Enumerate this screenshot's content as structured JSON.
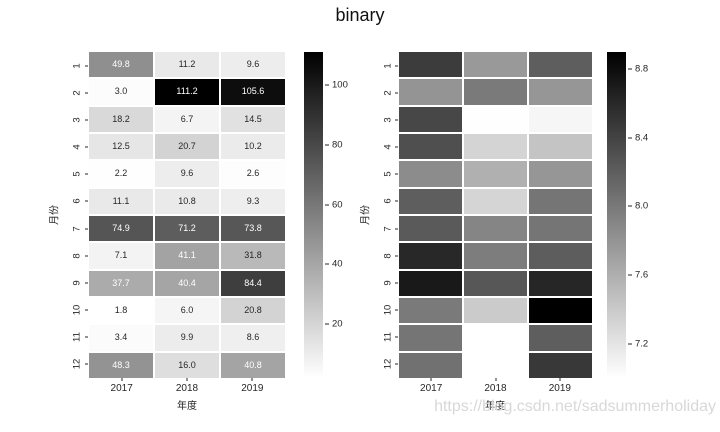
{
  "title": "binary",
  "watermark": "https://blog.csdn.net/sadsummerholiday",
  "colors": {
    "annotation_light": "#ffffff",
    "annotation_dark": "#262626",
    "tick_text": "#262626",
    "watermark": "#d8d8d8"
  },
  "chart_data": [
    {
      "type": "heatmap",
      "name": "annotated-heatmap",
      "colormap": "binary",
      "annotated": true,
      "xlabel": "年度",
      "ylabel": "月份",
      "columns": [
        "2017",
        "2018",
        "2019"
      ],
      "rows": [
        "1",
        "2",
        "3",
        "4",
        "5",
        "6",
        "7",
        "8",
        "9",
        "10",
        "11",
        "12"
      ],
      "values": [
        [
          49.8,
          11.2,
          9.6
        ],
        [
          3.0,
          111.2,
          105.6
        ],
        [
          18.2,
          6.7,
          14.5
        ],
        [
          12.5,
          20.7,
          10.2
        ],
        [
          2.2,
          9.6,
          2.6
        ],
        [
          11.1,
          10.8,
          9.3
        ],
        [
          74.9,
          71.2,
          73.8
        ],
        [
          7.1,
          41.1,
          31.8
        ],
        [
          37.7,
          40.4,
          84.4
        ],
        [
          1.8,
          6.0,
          20.8
        ],
        [
          3.4,
          9.9,
          8.6
        ],
        [
          48.3,
          16.0,
          40.8
        ]
      ],
      "vmin": 1.8,
      "vmax": 111.2,
      "colorbar_ticks": [
        "20",
        "40",
        "60",
        "80",
        "100"
      ]
    },
    {
      "type": "heatmap",
      "name": "plain-heatmap",
      "colormap": "binary",
      "annotated": false,
      "xlabel": "年度",
      "ylabel": "月份",
      "columns": [
        "2017",
        "2018",
        "2019"
      ],
      "rows": [
        "1",
        "2",
        "3",
        "4",
        "5",
        "6",
        "7",
        "8",
        "9",
        "10",
        "11",
        "12"
      ],
      "values": [
        [
          8.45,
          7.76,
          8.2
        ],
        [
          7.8,
          7.99,
          7.78
        ],
        [
          8.37,
          7.01,
          7.07
        ],
        [
          8.31,
          7.32,
          7.44
        ],
        [
          7.86,
          7.59,
          7.78
        ],
        [
          8.2,
          7.31,
          8.03
        ],
        [
          8.23,
          7.91,
          8.03
        ],
        [
          8.6,
          7.97,
          8.21
        ],
        [
          8.71,
          8.25,
          8.62
        ],
        [
          7.99,
          7.39,
          8.9
        ],
        [
          8.03,
          7.0,
          8.2
        ],
        [
          8.06,
          7.0,
          8.48
        ]
      ],
      "vmin": 7.0,
      "vmax": 8.9,
      "colorbar_ticks": [
        "7.2",
        "7.6",
        "8.0",
        "8.4",
        "8.8"
      ]
    }
  ]
}
